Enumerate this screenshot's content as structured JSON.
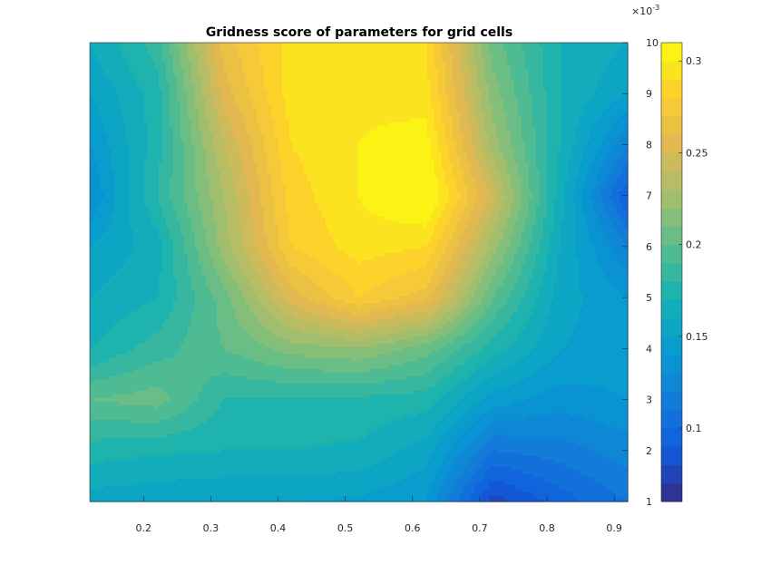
{
  "chart_data": {
    "type": "heatmap",
    "subtype": "filled-contour",
    "title": "Gridness score of parameters for grid cells",
    "xlabel": "",
    "ylabel": "",
    "x": [
      0.12,
      0.22,
      0.32,
      0.42,
      0.52,
      0.62,
      0.72,
      0.82,
      0.92
    ],
    "y": [
      1,
      2,
      3,
      4,
      5,
      6,
      7,
      8,
      9,
      10
    ],
    "z": [
      [
        0.155,
        0.152,
        0.15,
        0.15,
        0.148,
        0.14,
        0.075,
        0.095,
        0.11
      ],
      [
        0.175,
        0.172,
        0.17,
        0.17,
        0.168,
        0.155,
        0.11,
        0.115,
        0.125
      ],
      [
        0.2,
        0.205,
        0.18,
        0.178,
        0.178,
        0.175,
        0.145,
        0.135,
        0.14
      ],
      [
        0.17,
        0.185,
        0.2,
        0.215,
        0.22,
        0.205,
        0.175,
        0.15,
        0.145
      ],
      [
        0.16,
        0.17,
        0.205,
        0.255,
        0.28,
        0.265,
        0.2,
        0.155,
        0.14
      ],
      [
        0.15,
        0.165,
        0.225,
        0.28,
        0.295,
        0.29,
        0.225,
        0.16,
        0.12
      ],
      [
        0.13,
        0.18,
        0.23,
        0.285,
        0.3,
        0.315,
        0.245,
        0.165,
        0.09
      ],
      [
        0.14,
        0.175,
        0.24,
        0.29,
        0.3,
        0.305,
        0.225,
        0.17,
        0.12
      ],
      [
        0.15,
        0.175,
        0.255,
        0.295,
        0.298,
        0.295,
        0.215,
        0.17,
        0.15
      ],
      [
        0.16,
        0.185,
        0.265,
        0.295,
        0.298,
        0.29,
        0.205,
        0.17,
        0.16
      ]
    ],
    "x_ticks": [
      "0.2",
      "0.3",
      "0.4",
      "0.5",
      "0.6",
      "0.7",
      "0.8",
      "0.9"
    ],
    "x_tick_values": [
      0.2,
      0.3,
      0.4,
      0.5,
      0.6,
      0.7,
      0.8,
      0.9
    ],
    "xlim": [
      0.12,
      0.92
    ],
    "y_ticks": [
      "1",
      "2",
      "3",
      "4",
      "5",
      "6",
      "7",
      "8",
      "9",
      "10"
    ],
    "y_tick_values": [
      1,
      2,
      3,
      4,
      5,
      6,
      7,
      8,
      9,
      10
    ],
    "ylim": [
      1,
      10
    ],
    "y_axis_location": "right",
    "y_multiplier_base": "×10",
    "y_multiplier_exponent": "-3",
    "colorbar": {
      "ticks": [
        "0.1",
        "0.15",
        "0.2",
        "0.25",
        "0.3"
      ],
      "tick_values": [
        0.1,
        0.15,
        0.2,
        0.25,
        0.3
      ],
      "clim": [
        0.06,
        0.31
      ],
      "colormap": "parula",
      "levels": 25
    },
    "grid": false
  }
}
